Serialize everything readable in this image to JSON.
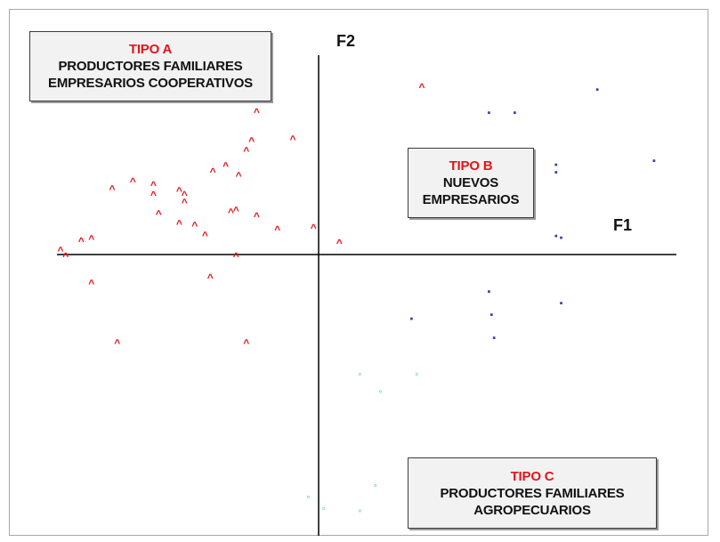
{
  "chart_data": {
    "type": "scatter",
    "axes": {
      "x_label": "F1",
      "y_label": "F2"
    },
    "grid": false,
    "legend": "none",
    "groups": [
      {
        "title": "TIPO A",
        "lines": [
          "PRODUCTORES FAMILIARES",
          "EMPRESARIOS COOPERATIVOS"
        ],
        "marker": "A",
        "color": "#e4141b",
        "points": [
          [
            0.4,
            0.87
          ],
          [
            -0.24,
            0.74
          ],
          [
            -0.1,
            0.6
          ],
          [
            -0.8,
            0.34
          ],
          [
            -0.64,
            0.31
          ],
          [
            -0.41,
            0.43
          ],
          [
            -0.31,
            0.41
          ],
          [
            -0.36,
            0.46
          ],
          [
            -0.28,
            0.54
          ],
          [
            -0.26,
            0.59
          ],
          [
            -0.32,
            0.23
          ],
          [
            -0.24,
            0.2
          ],
          [
            -0.16,
            0.13
          ],
          [
            -0.02,
            0.14
          ],
          [
            0.08,
            0.06
          ],
          [
            -0.72,
            0.38
          ],
          [
            -0.64,
            0.36
          ],
          [
            -0.54,
            0.33
          ],
          [
            -0.52,
            0.31
          ],
          [
            -0.52,
            0.27
          ],
          [
            -0.62,
            0.21
          ],
          [
            -0.54,
            0.16
          ],
          [
            -0.48,
            0.15
          ],
          [
            -0.44,
            0.1
          ],
          [
            -0.34,
            0.22
          ],
          [
            -0.92,
            0.07
          ],
          [
            -0.88,
            0.08
          ],
          [
            -0.98,
            -0.01
          ],
          [
            -1.0,
            0.02
          ],
          [
            -0.42,
            -0.12
          ],
          [
            -0.88,
            -0.15
          ],
          [
            -0.78,
            -0.46
          ],
          [
            -0.28,
            -0.46
          ],
          [
            -0.32,
            -0.01
          ]
        ]
      },
      {
        "title": "TIPO B",
        "lines": [
          "NUEVOS",
          "EMPRESARIOS"
        ],
        "marker": "B",
        "color": "#3b3fa8",
        "points": [
          [
            1.08,
            0.86
          ],
          [
            0.66,
            0.74
          ],
          [
            0.76,
            0.74
          ],
          [
            0.92,
            0.47
          ],
          [
            0.92,
            0.43
          ],
          [
            1.3,
            0.49
          ],
          [
            0.92,
            0.1
          ],
          [
            0.94,
            0.09
          ],
          [
            0.66,
            -0.19
          ],
          [
            0.36,
            -0.33
          ],
          [
            0.67,
            -0.31
          ],
          [
            0.68,
            -0.43
          ],
          [
            0.94,
            -0.25
          ]
        ]
      },
      {
        "title": "TIPO C",
        "lines": [
          "PRODUCTORES FAMILIARES",
          "AGROPECUARIOS"
        ],
        "marker": "C",
        "color": "#19a3e6",
        "points": [
          [
            0.16,
            -0.62
          ],
          [
            0.24,
            -0.71
          ],
          [
            0.38,
            -0.62
          ],
          [
            0.58,
            -1.12
          ],
          [
            0.22,
            -1.2
          ],
          [
            0.16,
            -1.33
          ],
          [
            -0.04,
            -1.26
          ],
          [
            -0.04,
            -1.52
          ],
          [
            0.02,
            -1.32
          ]
        ]
      }
    ]
  }
}
